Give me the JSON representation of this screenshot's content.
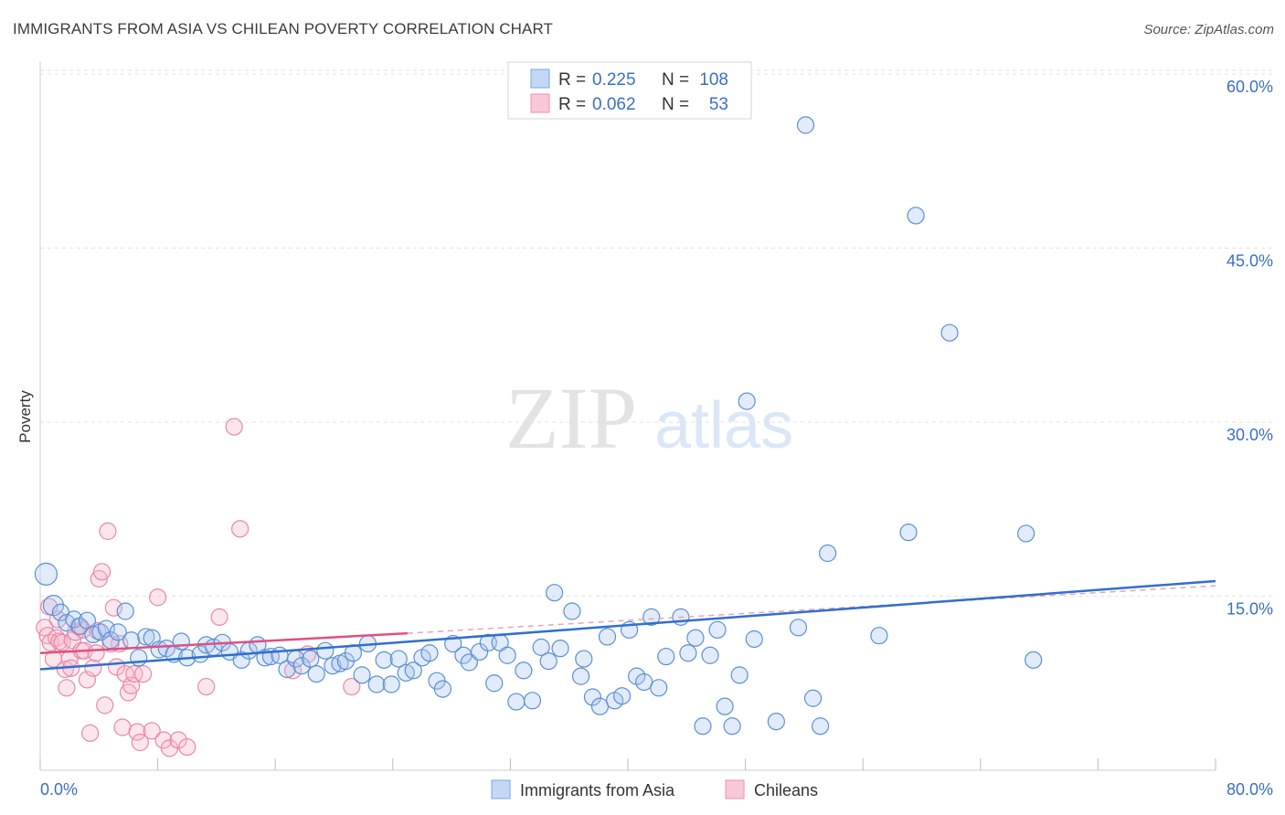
{
  "chart_data": {
    "type": "scatter",
    "title": "IMMIGRANTS FROM ASIA VS CHILEAN POVERTY CORRELATION CHART",
    "source": "Source: ZipAtlas.com",
    "xlabel": "",
    "ylabel": "Poverty",
    "xlim": [
      0,
      80
    ],
    "ylim": [
      0,
      60
    ],
    "x_tick_labels": [
      "0.0%",
      "80.0%"
    ],
    "y_ticks": [
      15,
      30,
      45,
      60
    ],
    "y_tick_labels": [
      "15.0%",
      "30.0%",
      "45.0%",
      "60.0%"
    ],
    "watermark": {
      "part1": "ZIP",
      "part2": "atlas"
    },
    "legend": {
      "rows": [
        {
          "r_label": "R =",
          "r_value": "0.225",
          "n_label": "N =",
          "n_value": "108"
        },
        {
          "r_label": "R =",
          "r_value": "0.062",
          "n_label": "N =",
          "n_value": "53"
        }
      ]
    },
    "series": [
      {
        "name": "Immigrants from Asia",
        "color": "#6fa0e0",
        "line_color": "#2f6fcf",
        "trend": {
          "x0": 0,
          "y0": 8.7,
          "x1": 80,
          "y1": 16.3
        },
        "points": [
          [
            0.4,
            16.9
          ],
          [
            0.9,
            14.2
          ],
          [
            1.4,
            13.6
          ],
          [
            1.8,
            12.7
          ],
          [
            2.3,
            13.0
          ],
          [
            2.7,
            12.4
          ],
          [
            3.2,
            12.9
          ],
          [
            3.6,
            11.7
          ],
          [
            4.1,
            11.9
          ],
          [
            4.5,
            12.2
          ],
          [
            4.8,
            11.2
          ],
          [
            5.3,
            11.9
          ],
          [
            5.8,
            13.7
          ],
          [
            6.2,
            11.2
          ],
          [
            6.7,
            9.7
          ],
          [
            7.2,
            11.5
          ],
          [
            7.6,
            11.4
          ],
          [
            8.1,
            10.4
          ],
          [
            8.6,
            10.5
          ],
          [
            9.1,
            10.0
          ],
          [
            9.6,
            11.1
          ],
          [
            10.0,
            9.7
          ],
          [
            10.9,
            10.0
          ],
          [
            11.3,
            10.8
          ],
          [
            11.8,
            10.6
          ],
          [
            12.4,
            11.0
          ],
          [
            12.9,
            10.2
          ],
          [
            13.7,
            9.5
          ],
          [
            14.2,
            10.3
          ],
          [
            14.8,
            10.8
          ],
          [
            15.3,
            9.7
          ],
          [
            15.7,
            9.8
          ],
          [
            16.3,
            9.9
          ],
          [
            16.8,
            8.7
          ],
          [
            17.4,
            9.6
          ],
          [
            17.8,
            9.0
          ],
          [
            18.4,
            9.6
          ],
          [
            18.8,
            8.3
          ],
          [
            19.4,
            10.3
          ],
          [
            19.9,
            9.0
          ],
          [
            20.4,
            9.2
          ],
          [
            20.8,
            9.4
          ],
          [
            21.3,
            10.1
          ],
          [
            21.9,
            8.2
          ],
          [
            22.3,
            10.9
          ],
          [
            22.9,
            7.4
          ],
          [
            23.4,
            9.5
          ],
          [
            23.9,
            7.4
          ],
          [
            24.4,
            9.6
          ],
          [
            24.9,
            8.4
          ],
          [
            25.4,
            8.6
          ],
          [
            26.0,
            9.7
          ],
          [
            26.5,
            10.1
          ],
          [
            27.0,
            7.7
          ],
          [
            27.4,
            7.0
          ],
          [
            28.1,
            10.9
          ],
          [
            28.8,
            9.9
          ],
          [
            29.2,
            9.3
          ],
          [
            29.9,
            10.2
          ],
          [
            30.5,
            11.0
          ],
          [
            30.9,
            7.5
          ],
          [
            31.3,
            11.0
          ],
          [
            31.8,
            9.9
          ],
          [
            32.4,
            5.9
          ],
          [
            32.9,
            8.6
          ],
          [
            33.5,
            6.0
          ],
          [
            34.1,
            10.6
          ],
          [
            34.6,
            9.4
          ],
          [
            35.0,
            15.3
          ],
          [
            35.4,
            10.5
          ],
          [
            36.2,
            13.7
          ],
          [
            36.8,
            8.1
          ],
          [
            37.0,
            9.6
          ],
          [
            37.6,
            6.3
          ],
          [
            38.1,
            5.5
          ],
          [
            38.6,
            11.5
          ],
          [
            39.1,
            6.0
          ],
          [
            39.6,
            6.4
          ],
          [
            40.1,
            12.1
          ],
          [
            40.6,
            8.1
          ],
          [
            41.1,
            7.6
          ],
          [
            41.6,
            13.2
          ],
          [
            42.1,
            7.1
          ],
          [
            42.6,
            9.8
          ],
          [
            43.6,
            13.2
          ],
          [
            44.1,
            10.1
          ],
          [
            44.6,
            11.4
          ],
          [
            45.1,
            3.8
          ],
          [
            45.6,
            9.9
          ],
          [
            46.1,
            12.1
          ],
          [
            46.6,
            5.5
          ],
          [
            47.1,
            3.8
          ],
          [
            47.6,
            8.2
          ],
          [
            48.1,
            31.8
          ],
          [
            48.6,
            11.3
          ],
          [
            50.1,
            4.2
          ],
          [
            51.6,
            12.3
          ],
          [
            52.1,
            55.6
          ],
          [
            52.6,
            6.2
          ],
          [
            53.1,
            3.8
          ],
          [
            53.6,
            18.7
          ],
          [
            57.1,
            11.6
          ],
          [
            59.1,
            20.5
          ],
          [
            59.6,
            47.8
          ],
          [
            61.9,
            37.7
          ],
          [
            67.1,
            20.4
          ],
          [
            67.6,
            9.5
          ]
        ]
      },
      {
        "name": "Chileans",
        "color": "#f08cb0",
        "line_color": "#e0507f",
        "trend": {
          "x0": 0,
          "y0": 10.1,
          "x1": 25,
          "y1": 11.8
        },
        "trend_dashed": {
          "x0": 25,
          "y0": 11.8,
          "x1": 80,
          "y1": 15.9
        },
        "points": [
          [
            0.3,
            12.3
          ],
          [
            0.5,
            11.6
          ],
          [
            0.7,
            11.0
          ],
          [
            0.9,
            9.6
          ],
          [
            1.1,
            11.4
          ],
          [
            1.3,
            11.1
          ],
          [
            1.5,
            11.0
          ],
          [
            1.7,
            8.7
          ],
          [
            1.8,
            7.1
          ],
          [
            2.0,
            9.6
          ],
          [
            2.2,
            11.2
          ],
          [
            2.4,
            11.9
          ],
          [
            2.6,
            12.4
          ],
          [
            2.8,
            10.3
          ],
          [
            3.0,
            10.3
          ],
          [
            3.2,
            7.8
          ],
          [
            3.4,
            3.2
          ],
          [
            3.6,
            8.8
          ],
          [
            3.8,
            10.1
          ],
          [
            4.0,
            16.5
          ],
          [
            4.2,
            17.1
          ],
          [
            4.4,
            5.6
          ],
          [
            4.6,
            20.6
          ],
          [
            4.8,
            10.9
          ],
          [
            5.0,
            14.0
          ],
          [
            5.2,
            8.9
          ],
          [
            5.4,
            10.9
          ],
          [
            5.6,
            3.7
          ],
          [
            5.8,
            8.3
          ],
          [
            6.0,
            6.7
          ],
          [
            6.2,
            7.3
          ],
          [
            6.4,
            8.3
          ],
          [
            6.6,
            3.3
          ],
          [
            6.8,
            2.4
          ],
          [
            7.0,
            8.3
          ],
          [
            7.6,
            3.4
          ],
          [
            8.0,
            14.9
          ],
          [
            8.4,
            2.6
          ],
          [
            8.8,
            1.9
          ],
          [
            9.4,
            2.6
          ],
          [
            10.0,
            2.0
          ],
          [
            11.3,
            7.2
          ],
          [
            12.2,
            13.2
          ],
          [
            13.2,
            29.6
          ],
          [
            13.6,
            20.8
          ],
          [
            17.2,
            8.6
          ],
          [
            18.2,
            10.0
          ],
          [
            21.2,
            7.2
          ],
          [
            2.1,
            8.8
          ],
          [
            3.9,
            12.0
          ],
          [
            1.2,
            13.0
          ],
          [
            0.6,
            14.1
          ],
          [
            2.9,
            12.1
          ]
        ]
      }
    ]
  }
}
